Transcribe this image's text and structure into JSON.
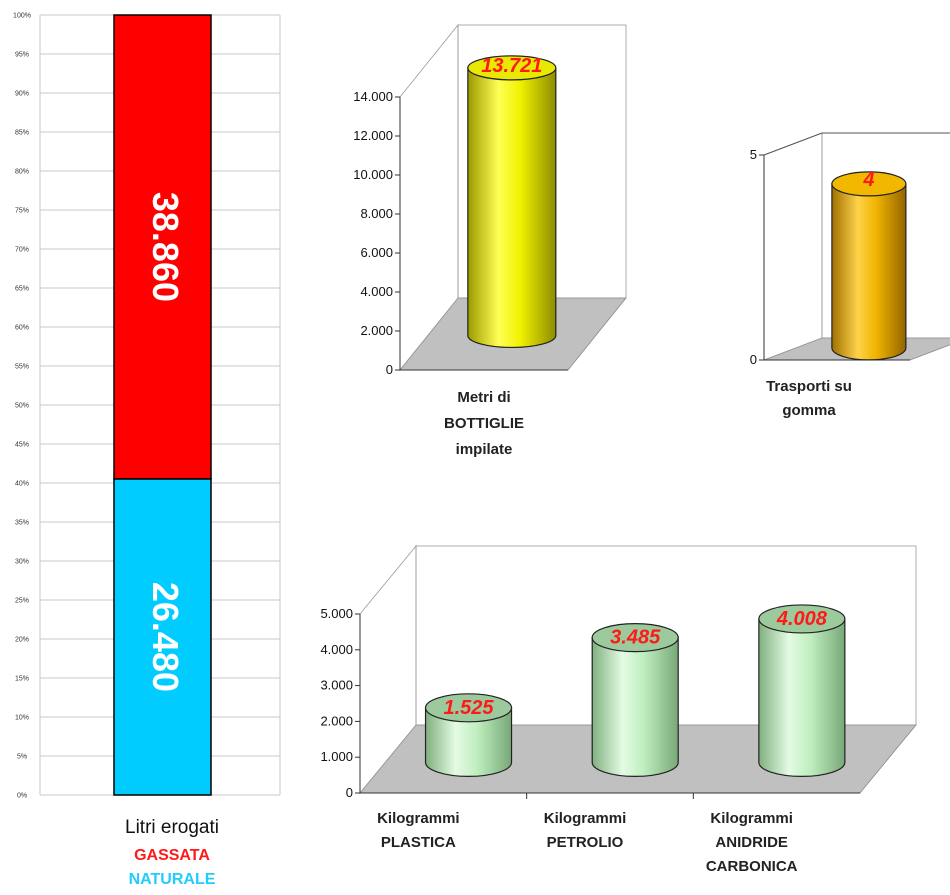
{
  "chart_data": [
    {
      "type": "bar",
      "stacked": "percent",
      "categories": [
        "Litri erogati"
      ],
      "series": [
        {
          "name": "NATURALE",
          "values": [
            26480
          ],
          "color": "#00ccff",
          "label": "26.480"
        },
        {
          "name": "GASSATA",
          "values": [
            38860
          ],
          "color": "#ff0000",
          "label": "38.860"
        }
      ],
      "yticks": [
        "0%",
        "5%",
        "10%",
        "15%",
        "20%",
        "25%",
        "30%",
        "35%",
        "40%",
        "45%",
        "50%",
        "55%",
        "60%",
        "65%",
        "70%",
        "75%",
        "80%",
        "85%",
        "90%",
        "95%",
        "100%"
      ],
      "ylim": [
        0,
        100
      ],
      "grid": true
    },
    {
      "type": "bar",
      "style": "3d-cylinder",
      "categories": [
        "Metri di BOTTIGLIE impilate"
      ],
      "category_lines": [
        "Metri di",
        "BOTTIGLIE",
        "impilate"
      ],
      "values": [
        13721
      ],
      "data_labels": [
        "13.721"
      ],
      "yticks": [
        "0",
        "2.000",
        "4.000",
        "6.000",
        "8.000",
        "10.000",
        "12.000",
        "14.000"
      ],
      "ylim": [
        0,
        14000
      ],
      "color": "#f0f000"
    },
    {
      "type": "bar",
      "style": "3d-cylinder",
      "categories": [
        "Trasporti su gomma"
      ],
      "category_lines": [
        "Trasporti su",
        "gomma"
      ],
      "values": [
        4
      ],
      "data_labels": [
        "4"
      ],
      "yticks": [
        "0",
        "5"
      ],
      "ylim": [
        0,
        5
      ],
      "color": "#f0b400"
    },
    {
      "type": "bar",
      "style": "3d-cylinder",
      "categories": [
        "Kilogrammi PLASTICA",
        "Kilogrammi PETROLIO",
        "Kilogrammi ANIDRIDE CARBONICA"
      ],
      "category_lines": [
        [
          "Kilogrammi",
          "PLASTICA"
        ],
        [
          "Kilogrammi",
          "PETROLIO"
        ],
        [
          "Kilogrammi",
          "ANIDRIDE",
          "CARBONICA"
        ]
      ],
      "values": [
        1525,
        3485,
        4008
      ],
      "data_labels": [
        "1.525",
        "3.485",
        "4.008"
      ],
      "yticks": [
        "0",
        "1.000",
        "2.000",
        "3.000",
        "4.000",
        "5.000"
      ],
      "ylim": [
        0,
        5000
      ],
      "color": "#b8eab8"
    }
  ]
}
